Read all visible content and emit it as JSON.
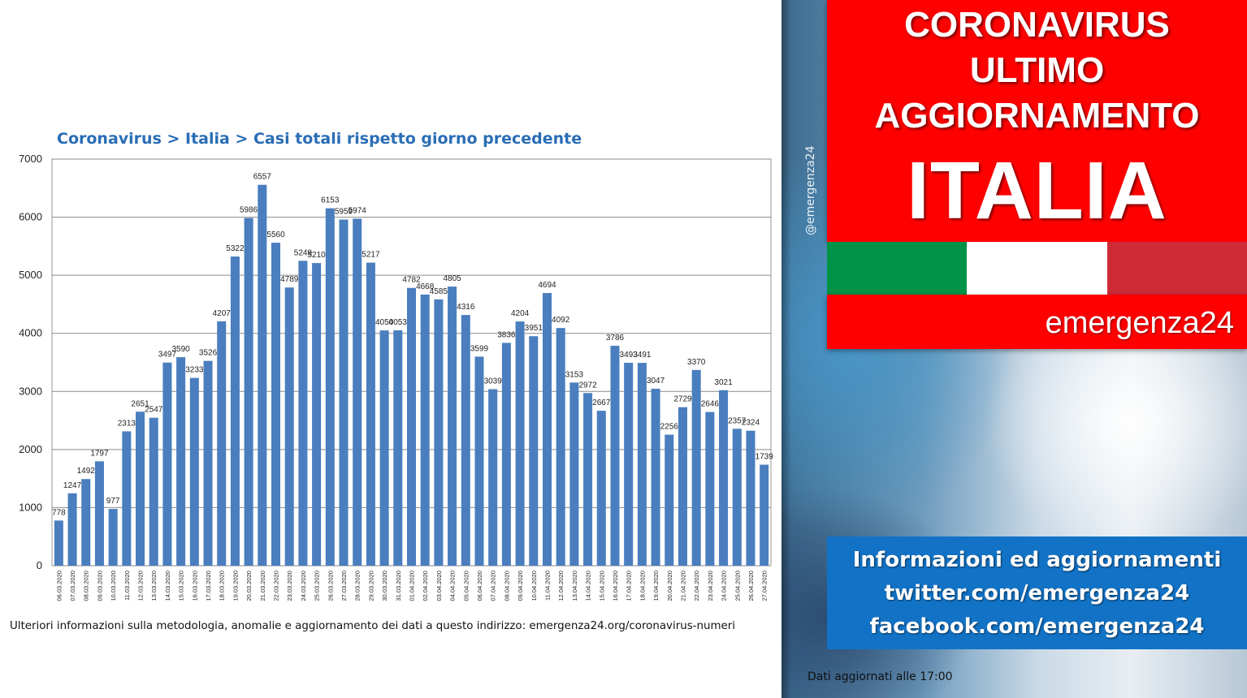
{
  "chart_data": {
    "type": "bar",
    "title": "Coronavirus > Italia > Casi totali rispetto giorno precedente",
    "ylim": [
      0,
      7000
    ],
    "yticks": [
      0,
      1000,
      2000,
      3000,
      4000,
      5000,
      6000,
      7000
    ],
    "grid": true,
    "color": "#4a7ebf",
    "categories": [
      "06.03.2020",
      "07.03.2020",
      "08.03.2020",
      "09.03.2020",
      "10.03.2020",
      "11.03.2020",
      "12.03.2020",
      "13.03.2020",
      "14.03.2020",
      "15.03.2020",
      "16.03.2020",
      "17.03.2020",
      "18.03.2020",
      "19.03.2020",
      "20.03.2020",
      "21.03.2020",
      "22.03.2020",
      "23.03.2020",
      "24.03.2020",
      "25.03.2020",
      "26.03.2020",
      "27.03.2020",
      "28.03.2020",
      "29.03.2020",
      "30.03.2020",
      "31.03.2020",
      "01.04.2020",
      "02.04.2020",
      "03.04.2020",
      "04.04.2020",
      "05.04.2020",
      "06.04.2020",
      "07.04.2020",
      "08.04.2020",
      "09.04.2020",
      "10.04.2020",
      "11.04.2020",
      "12.04.2020",
      "13.04.2020",
      "14.04.2020",
      "15.04.2020",
      "16.04.2020",
      "17.04.2020",
      "18.04.2020",
      "19.04.2020",
      "20.04.2020",
      "21.04.2020",
      "22.04.2020",
      "23.04.2020",
      "24.04.2020",
      "25.04.2020",
      "26.04.2020",
      "27.04.2020"
    ],
    "values": [
      778,
      1247,
      1492,
      1797,
      977,
      2313,
      2651,
      2547,
      3497,
      3590,
      3233,
      3526,
      4207,
      5322,
      5986,
      6557,
      5560,
      4789,
      5249,
      5210,
      6153,
      5959,
      5974,
      5217,
      4050,
      4053,
      4782,
      4668,
      4585,
      4805,
      4316,
      3599,
      3039,
      3836,
      4204,
      3951,
      4694,
      4092,
      3153,
      2972,
      2667,
      3786,
      3493,
      3491,
      3047,
      2256,
      2729,
      3370,
      2646,
      3021,
      2357,
      2324,
      1739
    ]
  },
  "footnote": "Ulteriori informazioni sulla metodologia, anomalie e aggiornamento dei dati a questo indirizzo: emergenza24.org/coronavirus-numeri",
  "watermark": "@emergenza24",
  "header": {
    "line1": "CORONAVIRUS",
    "line2": "ULTIMO",
    "line3": "AGGIORNAMENTO",
    "line4": "ITALIA"
  },
  "flag_colors": [
    "#009246",
    "#ffffff",
    "#ce2b37"
  ],
  "brand": "emergenza24",
  "info": {
    "line1": "Informazioni ed aggiornamenti",
    "line2": "twitter.com/emergenza24",
    "line3": "facebook.com/emergenza24"
  },
  "updated": "Dati aggiornati alle 17:00"
}
